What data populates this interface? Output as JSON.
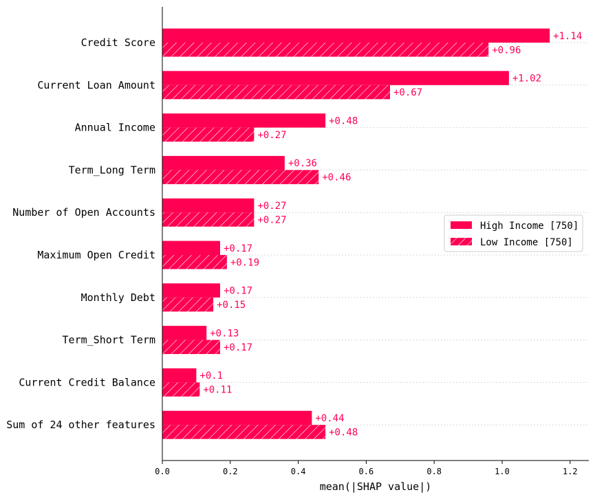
{
  "chart_data": {
    "type": "bar",
    "orientation": "horizontal",
    "categories": [
      "Credit Score",
      "Current Loan Amount",
      "Annual Income",
      "Term_Long Term",
      "Number of Open Accounts",
      "Maximum Open Credit",
      "Monthly Debt",
      "Term_Short Term",
      "Current Credit Balance",
      "Sum of 24 other features"
    ],
    "series": [
      {
        "name": "High Income [750]",
        "values": [
          1.14,
          1.02,
          0.48,
          0.36,
          0.27,
          0.17,
          0.17,
          0.13,
          0.1,
          0.44
        ],
        "labels": [
          "+1.14",
          "+1.02",
          "+0.48",
          "+0.36",
          "+0.27",
          "+0.17",
          "+0.17",
          "+0.13",
          "+0.1",
          "+0.44"
        ],
        "hatch": false
      },
      {
        "name": "Low Income [750]",
        "values": [
          0.96,
          0.67,
          0.27,
          0.46,
          0.27,
          0.19,
          0.15,
          0.17,
          0.11,
          0.48
        ],
        "labels": [
          "+0.96",
          "+0.67",
          "+0.27",
          "+0.46",
          "+0.27",
          "+0.19",
          "+0.15",
          "+0.17",
          "+0.11",
          "+0.48"
        ],
        "hatch": true
      }
    ],
    "xlabel": "mean(|SHAP value|)",
    "ylabel": "",
    "title": "",
    "xlim": [
      0,
      1.25
    ],
    "xticks": [
      0.0,
      0.2,
      0.4,
      0.6,
      0.8,
      1.0,
      1.2
    ],
    "xtick_labels": [
      "0.0",
      "0.2",
      "0.4",
      "0.6",
      "0.8",
      "1.0",
      "1.2"
    ],
    "legend_placement": "center-right",
    "gridlines": "dotted horizontal per feature",
    "colors": {
      "bar": "#ff0052",
      "text": "#ff0052",
      "grid": "#cccccc",
      "axis": "#000000"
    }
  }
}
